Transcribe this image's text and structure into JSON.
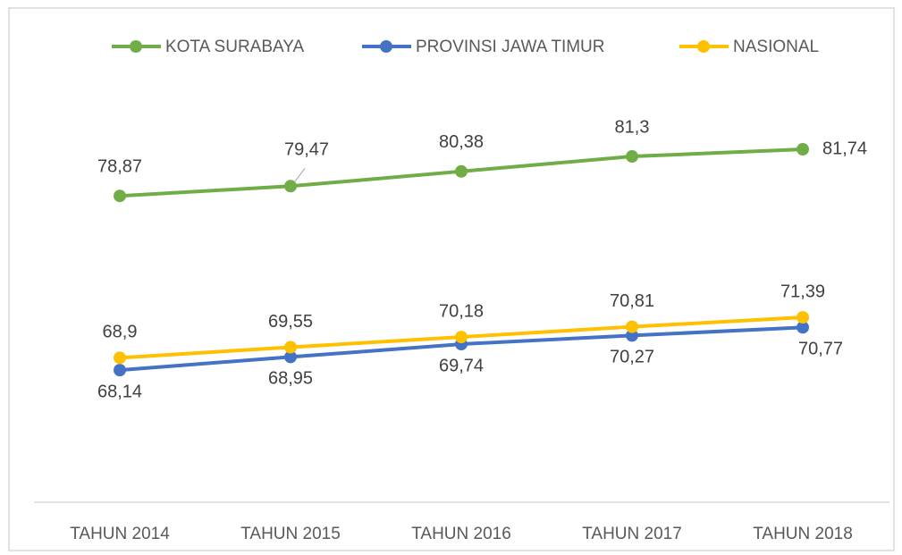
{
  "chart_data": {
    "type": "line",
    "categories": [
      "TAHUN 2014",
      "TAHUN 2015",
      "TAHUN 2016",
      "TAHUN 2017",
      "TAHUN 2018"
    ],
    "series": [
      {
        "name": "KOTA SURABAYA",
        "color": "#70ad47",
        "values": [
          78.87,
          79.47,
          80.38,
          81.3,
          81.74
        ],
        "value_labels": [
          "78,87",
          "79,47",
          "80,38",
          "81,3",
          "81,74"
        ]
      },
      {
        "name": "PROVINSI JAWA TIMUR",
        "color": "#4472c4",
        "values": [
          68.14,
          68.95,
          69.74,
          70.27,
          70.77
        ],
        "value_labels": [
          "68,14",
          "68,95",
          "69,74",
          "70,27",
          "70,77"
        ]
      },
      {
        "name": "NASIONAL",
        "color": "#ffc000",
        "values": [
          68.9,
          69.55,
          70.18,
          70.81,
          71.39
        ],
        "value_labels": [
          "68,9",
          "69,55",
          "70,18",
          "70,81",
          "71,39"
        ]
      }
    ],
    "ylim": [
      60,
      90
    ]
  }
}
